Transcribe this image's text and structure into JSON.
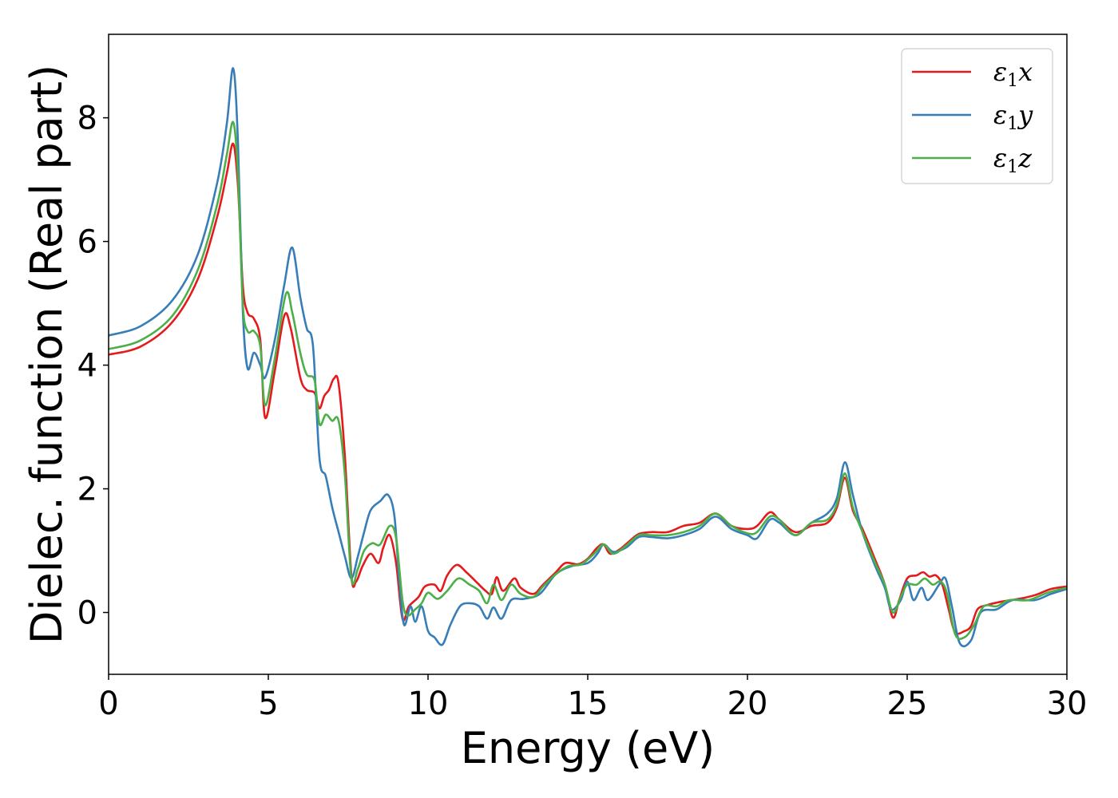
{
  "chart_data": {
    "type": "line",
    "title": "",
    "xlabel": "Energy (eV)",
    "ylabel": "Dielec. function (Real part)",
    "xlim": [
      0,
      30
    ],
    "ylim": [
      -1.0,
      9.35
    ],
    "xticks": [
      0,
      5,
      10,
      15,
      20,
      25,
      30
    ],
    "xtick_labels": [
      "0",
      "5",
      "10",
      "15",
      "20",
      "25",
      "30"
    ],
    "yticks": [
      0,
      2,
      4,
      6,
      8
    ],
    "ytick_labels": [
      "0",
      "2",
      "4",
      "6",
      "8"
    ],
    "grid": false,
    "legend_position": "top-right",
    "series": [
      {
        "name": "ε1x",
        "legend_base": "ε",
        "legend_sub": "1",
        "legend_suffix": "x",
        "color": "#e41a1c",
        "points": [
          [
            0,
            4.17
          ],
          [
            1,
            4.3
          ],
          [
            2,
            4.7
          ],
          [
            2.8,
            5.4
          ],
          [
            3.4,
            6.4
          ],
          [
            3.7,
            7.1
          ],
          [
            3.9,
            7.58
          ],
          [
            4.05,
            6.9
          ],
          [
            4.2,
            5.3
          ],
          [
            4.35,
            4.85
          ],
          [
            4.55,
            4.75
          ],
          [
            4.75,
            4.4
          ],
          [
            4.9,
            3.15
          ],
          [
            5.2,
            3.9
          ],
          [
            5.5,
            4.8
          ],
          [
            5.7,
            4.6
          ],
          [
            6.0,
            3.8
          ],
          [
            6.2,
            3.6
          ],
          [
            6.45,
            3.55
          ],
          [
            6.6,
            3.3
          ],
          [
            6.75,
            3.5
          ],
          [
            6.9,
            3.6
          ],
          [
            7.05,
            3.78
          ],
          [
            7.2,
            3.7
          ],
          [
            7.4,
            2.5
          ],
          [
            7.6,
            0.6
          ],
          [
            7.75,
            0.5
          ],
          [
            7.95,
            0.75
          ],
          [
            8.2,
            0.95
          ],
          [
            8.45,
            0.8
          ],
          [
            8.6,
            1.05
          ],
          [
            8.8,
            1.25
          ],
          [
            9.0,
            0.8
          ],
          [
            9.2,
            -0.1
          ],
          [
            9.4,
            0.1
          ],
          [
            9.7,
            0.25
          ],
          [
            9.9,
            0.42
          ],
          [
            10.2,
            0.45
          ],
          [
            10.4,
            0.35
          ],
          [
            10.6,
            0.6
          ],
          [
            10.9,
            0.77
          ],
          [
            11.2,
            0.65
          ],
          [
            11.5,
            0.5
          ],
          [
            11.8,
            0.35
          ],
          [
            12.0,
            0.3
          ],
          [
            12.15,
            0.57
          ],
          [
            12.35,
            0.35
          ],
          [
            12.7,
            0.55
          ],
          [
            12.9,
            0.4
          ],
          [
            13.3,
            0.3
          ],
          [
            13.6,
            0.45
          ],
          [
            14.0,
            0.65
          ],
          [
            14.3,
            0.8
          ],
          [
            14.7,
            0.78
          ],
          [
            15.0,
            0.87
          ],
          [
            15.3,
            1.05
          ],
          [
            15.5,
            1.1
          ],
          [
            15.7,
            0.95
          ],
          [
            16.0,
            1.02
          ],
          [
            16.3,
            1.15
          ],
          [
            16.6,
            1.27
          ],
          [
            17.0,
            1.3
          ],
          [
            17.5,
            1.3
          ],
          [
            18.0,
            1.4
          ],
          [
            18.5,
            1.45
          ],
          [
            19.0,
            1.6
          ],
          [
            19.5,
            1.4
          ],
          [
            20.0,
            1.35
          ],
          [
            20.3,
            1.4
          ],
          [
            20.7,
            1.62
          ],
          [
            21.0,
            1.5
          ],
          [
            21.5,
            1.3
          ],
          [
            22.0,
            1.4
          ],
          [
            22.5,
            1.45
          ],
          [
            22.8,
            1.7
          ],
          [
            23.05,
            2.18
          ],
          [
            23.3,
            1.65
          ],
          [
            23.6,
            1.35
          ],
          [
            24.0,
            0.85
          ],
          [
            24.3,
            0.45
          ],
          [
            24.55,
            -0.08
          ],
          [
            24.75,
            0.2
          ],
          [
            25.0,
            0.55
          ],
          [
            25.3,
            0.6
          ],
          [
            25.5,
            0.65
          ],
          [
            25.7,
            0.58
          ],
          [
            25.9,
            0.6
          ],
          [
            26.1,
            0.45
          ],
          [
            26.3,
            0.05
          ],
          [
            26.5,
            -0.32
          ],
          [
            26.8,
            -0.3
          ],
          [
            27.0,
            -0.22
          ],
          [
            27.2,
            0.05
          ],
          [
            27.5,
            0.12
          ],
          [
            28.0,
            0.18
          ],
          [
            28.5,
            0.22
          ],
          [
            29.0,
            0.28
          ],
          [
            29.5,
            0.38
          ],
          [
            30.0,
            0.42
          ]
        ]
      },
      {
        "name": "ε1y",
        "legend_base": "ε",
        "legend_sub": "1",
        "legend_suffix": "y",
        "color": "#377eb8",
        "points": [
          [
            0,
            4.48
          ],
          [
            1,
            4.63
          ],
          [
            2,
            5.05
          ],
          [
            2.8,
            5.8
          ],
          [
            3.4,
            6.95
          ],
          [
            3.7,
            7.9
          ],
          [
            3.9,
            8.8
          ],
          [
            4.05,
            7.6
          ],
          [
            4.2,
            4.9
          ],
          [
            4.35,
            3.95
          ],
          [
            4.55,
            4.2
          ],
          [
            4.75,
            4.0
          ],
          [
            4.9,
            3.8
          ],
          [
            5.2,
            4.4
          ],
          [
            5.5,
            5.3
          ],
          [
            5.75,
            5.9
          ],
          [
            6.0,
            5.1
          ],
          [
            6.2,
            4.6
          ],
          [
            6.4,
            4.3
          ],
          [
            6.6,
            2.5
          ],
          [
            6.8,
            2.2
          ],
          [
            7.0,
            1.7
          ],
          [
            7.2,
            1.3
          ],
          [
            7.4,
            0.9
          ],
          [
            7.6,
            0.55
          ],
          [
            7.8,
            0.9
          ],
          [
            8.0,
            1.3
          ],
          [
            8.2,
            1.65
          ],
          [
            8.5,
            1.8
          ],
          [
            8.75,
            1.9
          ],
          [
            8.95,
            1.55
          ],
          [
            9.1,
            0.5
          ],
          [
            9.25,
            -0.2
          ],
          [
            9.45,
            0.1
          ],
          [
            9.6,
            -0.15
          ],
          [
            9.8,
            0.1
          ],
          [
            10.0,
            -0.3
          ],
          [
            10.2,
            -0.4
          ],
          [
            10.45,
            -0.52
          ],
          [
            10.7,
            -0.2
          ],
          [
            11.0,
            0.1
          ],
          [
            11.3,
            0.15
          ],
          [
            11.6,
            0.1
          ],
          [
            11.85,
            -0.1
          ],
          [
            12.05,
            0.08
          ],
          [
            12.3,
            -0.1
          ],
          [
            12.6,
            0.2
          ],
          [
            13.0,
            0.22
          ],
          [
            13.5,
            0.3
          ],
          [
            14.0,
            0.62
          ],
          [
            14.5,
            0.75
          ],
          [
            15.0,
            0.8
          ],
          [
            15.3,
            0.95
          ],
          [
            15.5,
            1.1
          ],
          [
            15.8,
            0.98
          ],
          [
            16.2,
            1.05
          ],
          [
            16.6,
            1.22
          ],
          [
            17.0,
            1.22
          ],
          [
            17.5,
            1.2
          ],
          [
            18.0,
            1.25
          ],
          [
            18.5,
            1.35
          ],
          [
            19.0,
            1.55
          ],
          [
            19.5,
            1.35
          ],
          [
            20.0,
            1.25
          ],
          [
            20.3,
            1.2
          ],
          [
            20.7,
            1.5
          ],
          [
            21.0,
            1.45
          ],
          [
            21.5,
            1.25
          ],
          [
            22.0,
            1.45
          ],
          [
            22.5,
            1.6
          ],
          [
            22.8,
            1.85
          ],
          [
            23.05,
            2.43
          ],
          [
            23.3,
            1.9
          ],
          [
            23.6,
            1.3
          ],
          [
            24.0,
            0.75
          ],
          [
            24.3,
            0.4
          ],
          [
            24.5,
            0.05
          ],
          [
            24.8,
            0.2
          ],
          [
            25.0,
            0.5
          ],
          [
            25.2,
            0.2
          ],
          [
            25.45,
            0.4
          ],
          [
            25.65,
            0.2
          ],
          [
            26.0,
            0.45
          ],
          [
            26.2,
            0.55
          ],
          [
            26.4,
            0.1
          ],
          [
            26.65,
            -0.5
          ],
          [
            27.0,
            -0.45
          ],
          [
            27.3,
            0.0
          ],
          [
            27.8,
            0.05
          ],
          [
            28.3,
            0.2
          ],
          [
            29.0,
            0.2
          ],
          [
            29.5,
            0.3
          ],
          [
            30.0,
            0.38
          ]
        ]
      },
      {
        "name": "ε1z",
        "legend_base": "ε",
        "legend_sub": "1",
        "legend_suffix": "z",
        "color": "#4daf4a",
        "points": [
          [
            0,
            4.26
          ],
          [
            1,
            4.4
          ],
          [
            2,
            4.8
          ],
          [
            2.8,
            5.55
          ],
          [
            3.4,
            6.6
          ],
          [
            3.7,
            7.4
          ],
          [
            3.9,
            7.93
          ],
          [
            4.05,
            7.1
          ],
          [
            4.2,
            5.0
          ],
          [
            4.35,
            4.55
          ],
          [
            4.55,
            4.55
          ],
          [
            4.75,
            4.3
          ],
          [
            4.9,
            3.35
          ],
          [
            5.2,
            4.1
          ],
          [
            5.55,
            5.15
          ],
          [
            5.75,
            4.85
          ],
          [
            6.0,
            4.2
          ],
          [
            6.2,
            3.85
          ],
          [
            6.45,
            3.75
          ],
          [
            6.6,
            3.05
          ],
          [
            6.8,
            3.2
          ],
          [
            7.0,
            3.1
          ],
          [
            7.2,
            3.1
          ],
          [
            7.4,
            2.2
          ],
          [
            7.6,
            0.55
          ],
          [
            7.8,
            0.7
          ],
          [
            8.0,
            1.0
          ],
          [
            8.25,
            1.12
          ],
          [
            8.5,
            1.1
          ],
          [
            8.8,
            1.4
          ],
          [
            9.0,
            1.2
          ],
          [
            9.2,
            0.2
          ],
          [
            9.35,
            -0.05
          ],
          [
            9.6,
            0.05
          ],
          [
            9.8,
            0.15
          ],
          [
            10.0,
            0.32
          ],
          [
            10.3,
            0.22
          ],
          [
            10.6,
            0.35
          ],
          [
            10.95,
            0.55
          ],
          [
            11.3,
            0.45
          ],
          [
            11.6,
            0.35
          ],
          [
            11.85,
            0.15
          ],
          [
            12.05,
            0.45
          ],
          [
            12.3,
            0.2
          ],
          [
            12.6,
            0.45
          ],
          [
            12.9,
            0.3
          ],
          [
            13.3,
            0.25
          ],
          [
            13.6,
            0.42
          ],
          [
            14.0,
            0.62
          ],
          [
            14.4,
            0.75
          ],
          [
            14.8,
            0.78
          ],
          [
            15.2,
            0.95
          ],
          [
            15.5,
            1.1
          ],
          [
            15.8,
            0.95
          ],
          [
            16.2,
            1.08
          ],
          [
            16.6,
            1.25
          ],
          [
            17.0,
            1.25
          ],
          [
            17.5,
            1.25
          ],
          [
            18.0,
            1.3
          ],
          [
            18.5,
            1.4
          ],
          [
            19.0,
            1.6
          ],
          [
            19.5,
            1.4
          ],
          [
            20.0,
            1.28
          ],
          [
            20.3,
            1.3
          ],
          [
            20.7,
            1.55
          ],
          [
            21.0,
            1.5
          ],
          [
            21.5,
            1.25
          ],
          [
            22.0,
            1.45
          ],
          [
            22.5,
            1.5
          ],
          [
            22.8,
            1.75
          ],
          [
            23.05,
            2.25
          ],
          [
            23.3,
            1.7
          ],
          [
            23.6,
            1.3
          ],
          [
            24.0,
            0.8
          ],
          [
            24.3,
            0.45
          ],
          [
            24.55,
            0.0
          ],
          [
            24.8,
            0.25
          ],
          [
            25.0,
            0.45
          ],
          [
            25.3,
            0.45
          ],
          [
            25.55,
            0.55
          ],
          [
            25.8,
            0.45
          ],
          [
            26.05,
            0.5
          ],
          [
            26.25,
            0.3
          ],
          [
            26.5,
            -0.35
          ],
          [
            26.8,
            -0.4
          ],
          [
            27.1,
            -0.2
          ],
          [
            27.4,
            0.1
          ],
          [
            27.8,
            0.1
          ],
          [
            28.2,
            0.2
          ],
          [
            28.8,
            0.2
          ],
          [
            29.4,
            0.32
          ],
          [
            30.0,
            0.4
          ]
        ]
      }
    ]
  }
}
